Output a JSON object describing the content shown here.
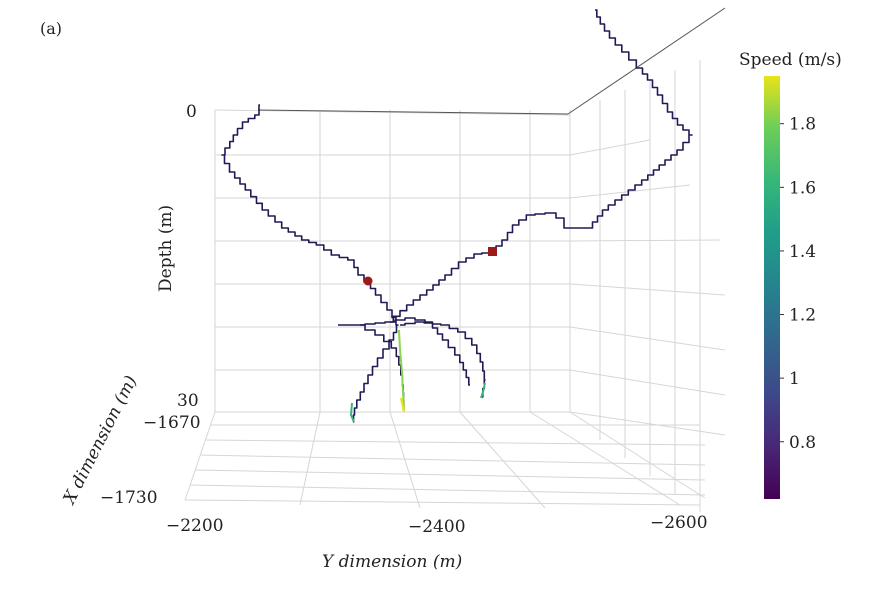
{
  "panel_label": "(a)",
  "chart_data": {
    "type": "3d-line",
    "colorbar": {
      "title": "Speed (m/s)",
      "colormap": "viridis",
      "range": [
        0.62,
        1.95
      ],
      "ticks": [
        "0.8",
        "1",
        "1.2",
        "1.4",
        "1.6",
        "1.8"
      ],
      "tick_values": [
        0.8,
        1.0,
        1.2,
        1.4,
        1.6,
        1.8
      ]
    },
    "axes": {
      "z": {
        "label": "Depth (m)",
        "ticks": [
          "0",
          "30"
        ],
        "tick_values": [
          0,
          30
        ],
        "range": [
          0,
          30
        ]
      },
      "x": {
        "label": "X dimension (m)",
        "ticks": [
          "−1670",
          "−1730"
        ],
        "tick_values": [
          -1670,
          -1730
        ],
        "range": [
          -1670,
          -1730
        ]
      },
      "y": {
        "label": "Y dimension (m)",
        "ticks": [
          "−2200",
          "−2400",
          "−2600"
        ],
        "tick_values": [
          -2200,
          -2400,
          -2600
        ],
        "range": [
          -2200,
          -2600
        ]
      }
    },
    "grid": true,
    "markers": [
      {
        "name": "start",
        "shape": "circle",
        "color": "#9b1b1b"
      },
      {
        "name": "end",
        "shape": "square",
        "color": "#9b1b1b"
      }
    ]
  }
}
